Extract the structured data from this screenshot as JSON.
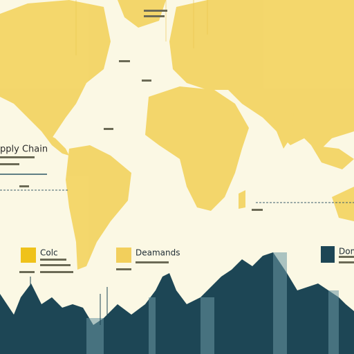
{
  "header": {
    "title": "pply Chain"
  },
  "legend": [
    {
      "label": "Colc",
      "color": "#efc21a"
    },
    {
      "label": "Deamands",
      "color": "#f2cf5c"
    },
    {
      "label": "Dom",
      "color": "#1d4655"
    }
  ]
}
